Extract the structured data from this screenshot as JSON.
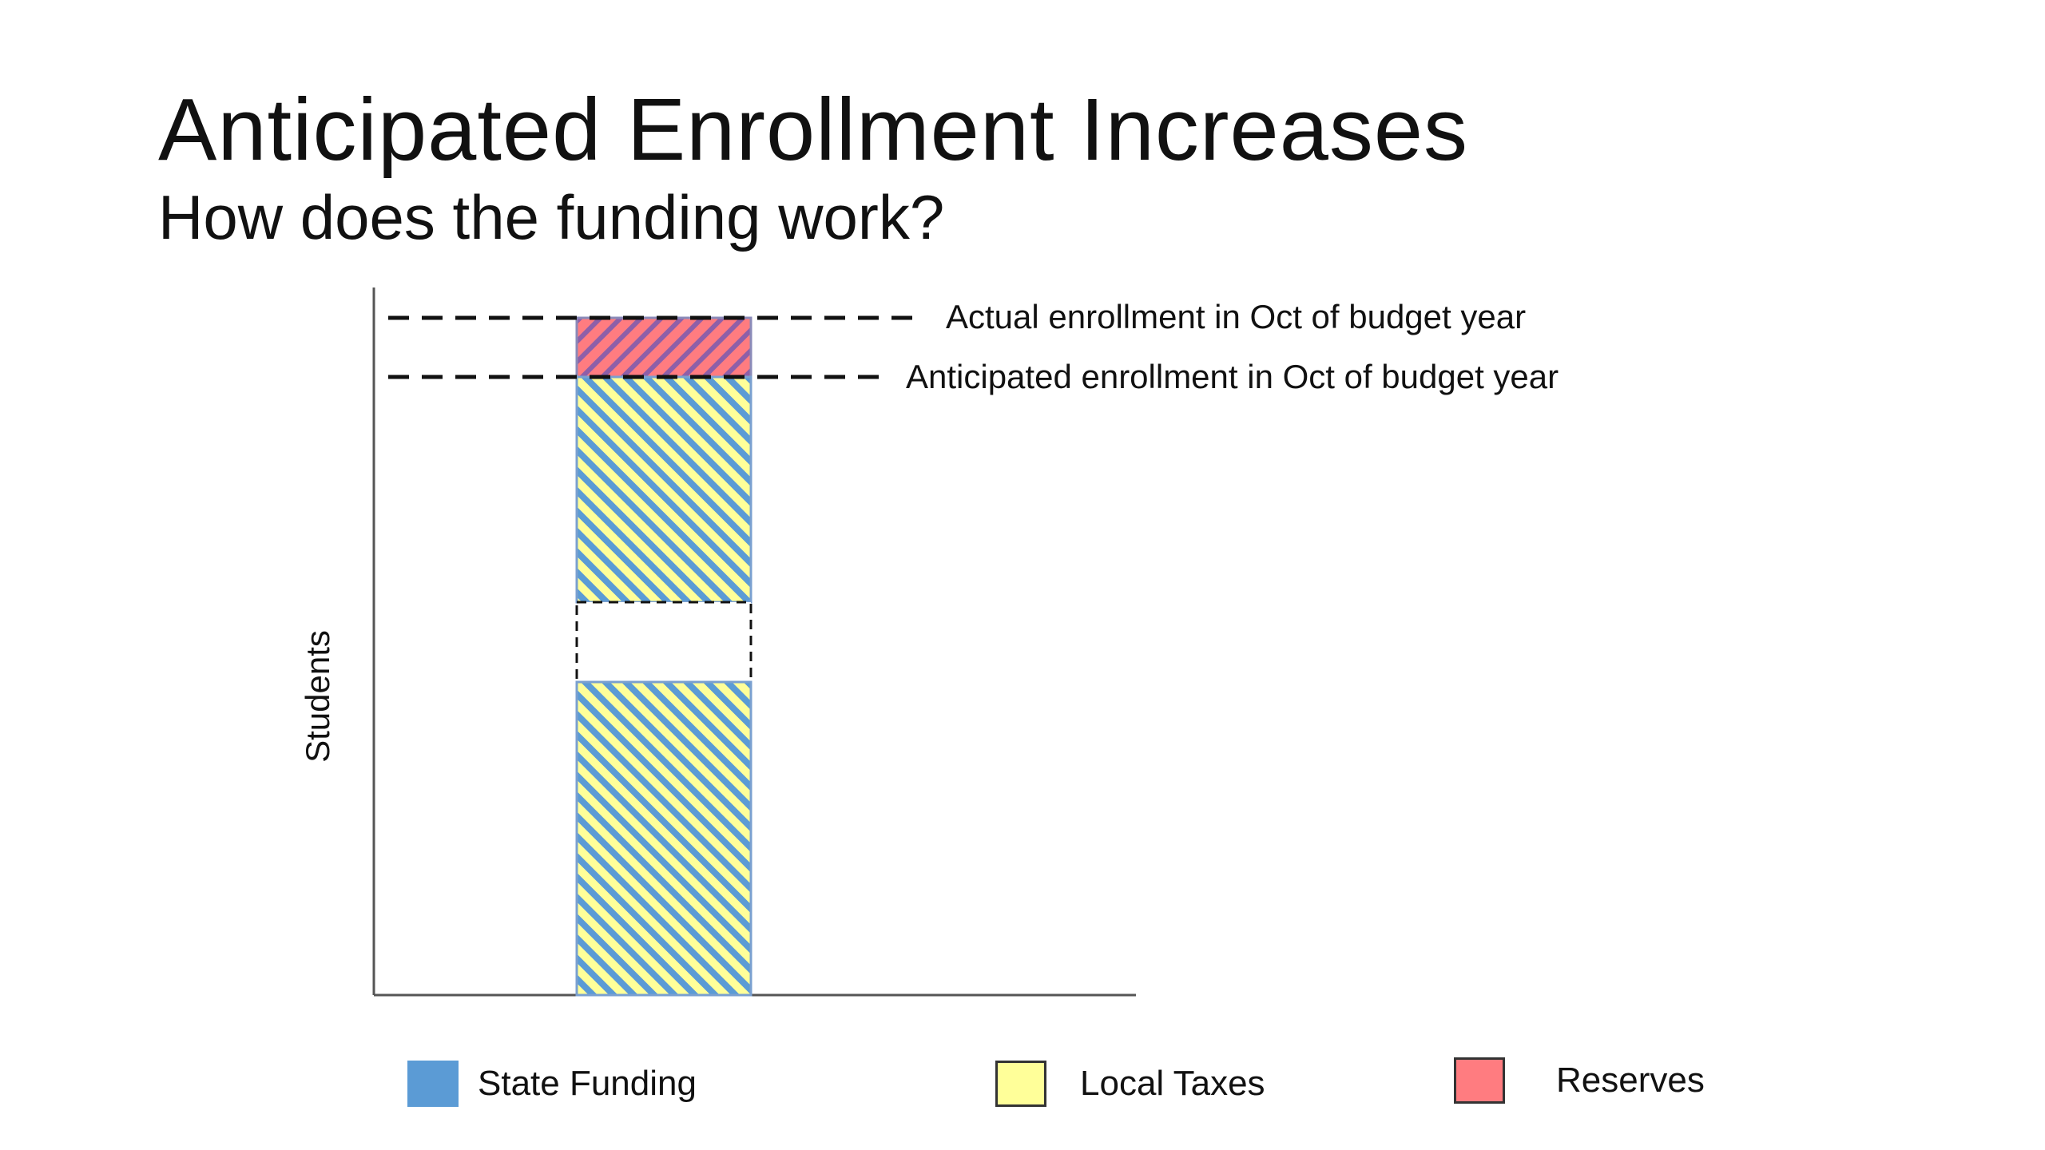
{
  "slide": {
    "title": "Anticipated Enrollment Increases",
    "subtitle": "How does the funding work?"
  },
  "diagram": {
    "y_axis_label": "Students",
    "annotations": {
      "actual": "Actual enrollment in Oct of budget year",
      "anticipated": "Anticipated enrollment in Oct of budget year"
    }
  },
  "legend": {
    "state": {
      "label": "State Funding",
      "color": "#5b9bd5"
    },
    "local": {
      "label": "Local Taxes",
      "color": "#ffff99"
    },
    "reserves": {
      "label": "Reserves",
      "color": "#ff7c80"
    }
  },
  "colors": {
    "state": "#5b9bd5",
    "local": "#ffff99",
    "reserves": "#ff7c80",
    "reserves_stripe": "#8e5fa8",
    "axis": "#555555",
    "dash": "#111111"
  }
}
